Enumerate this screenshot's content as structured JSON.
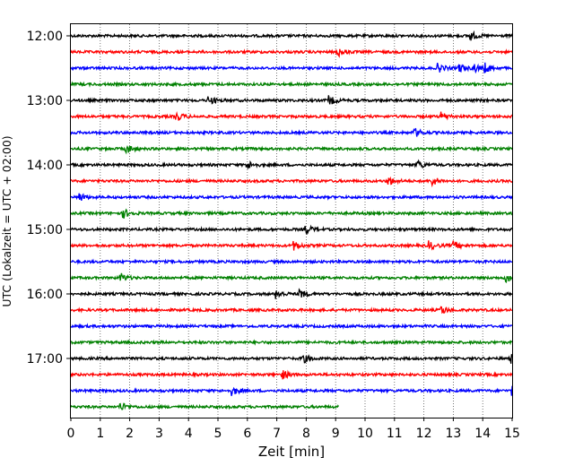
{
  "chart_data": {
    "type": "line",
    "title": "",
    "xlabel": "Zeit  [min]",
    "ylabel": "UTC (Lokalzeit = UTC + 02:00)",
    "xlim": [
      0,
      15
    ],
    "x_ticks": [
      "0",
      "1",
      "2",
      "3",
      "4",
      "5",
      "6",
      "7",
      "8",
      "9",
      "10",
      "11",
      "12",
      "13",
      "14",
      "15"
    ],
    "y_ticks": [
      "12:00",
      "13:00",
      "14:00",
      "15:00",
      "16:00",
      "17:00"
    ],
    "grid": "vertical dotted",
    "trace_interval_min": 15,
    "start_utc": "12:00",
    "last_trace_end_min": 9.1,
    "colors": [
      "#000000",
      "#ff0000",
      "#0000ff",
      "#008000"
    ],
    "series": [
      {
        "start": "12:00",
        "color": "#000000",
        "events": [
          13.6
        ]
      },
      {
        "start": "12:15",
        "color": "#ff0000",
        "events": [
          9.1
        ]
      },
      {
        "start": "12:30",
        "color": "#0000ff",
        "events": [
          12.5,
          13.2,
          13.7,
          14.1
        ]
      },
      {
        "start": "12:45",
        "color": "#008000",
        "events": []
      },
      {
        "start": "13:00",
        "color": "#000000",
        "events": [
          4.7,
          8.8
        ]
      },
      {
        "start": "13:15",
        "color": "#ff0000",
        "events": [
          3.6,
          12.6
        ]
      },
      {
        "start": "13:30",
        "color": "#0000ff",
        "events": [
          11.7
        ]
      },
      {
        "start": "13:45",
        "color": "#008000",
        "events": [
          1.9
        ]
      },
      {
        "start": "14:00",
        "color": "#000000",
        "events": [
          6.0,
          11.8
        ]
      },
      {
        "start": "14:15",
        "color": "#ff0000",
        "events": [
          10.8,
          12.3
        ]
      },
      {
        "start": "14:30",
        "color": "#0000ff",
        "events": [
          0.3
        ]
      },
      {
        "start": "14:45",
        "color": "#008000",
        "events": [
          1.8
        ]
      },
      {
        "start": "15:00",
        "color": "#000000",
        "events": [
          8.0
        ]
      },
      {
        "start": "15:15",
        "color": "#ff0000",
        "events": [
          7.6,
          12.2,
          13.0
        ]
      },
      {
        "start": "15:30",
        "color": "#0000ff",
        "events": []
      },
      {
        "start": "15:45",
        "color": "#008000",
        "events": [
          1.7,
          14.8
        ]
      },
      {
        "start": "16:00",
        "color": "#000000",
        "events": [
          7.0,
          7.8
        ]
      },
      {
        "start": "16:15",
        "color": "#ff0000",
        "events": [
          12.6
        ]
      },
      {
        "start": "16:30",
        "color": "#0000ff",
        "events": []
      },
      {
        "start": "16:45",
        "color": "#008000",
        "events": []
      },
      {
        "start": "17:00",
        "color": "#000000",
        "events": [
          7.9,
          15.0
        ]
      },
      {
        "start": "17:15",
        "color": "#ff0000",
        "events": [
          7.2
        ]
      },
      {
        "start": "17:30",
        "color": "#0000ff",
        "events": [
          5.5,
          15.0
        ]
      },
      {
        "start": "17:45",
        "color": "#008000",
        "events": [
          1.7
        ]
      }
    ]
  }
}
